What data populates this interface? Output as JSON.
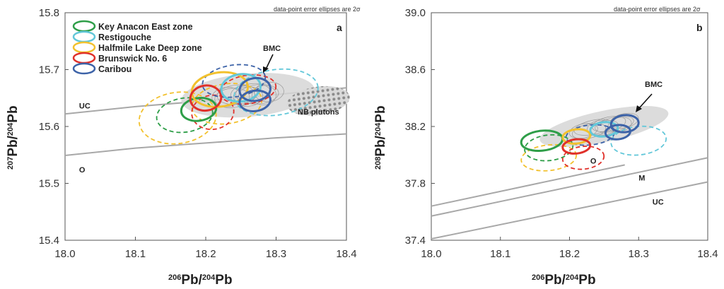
{
  "colors": {
    "Key Anacon East zone": "#2e9e48",
    "Restigouche": "#62c7d9",
    "Halfmile Lake Deep zone": "#f2c12e",
    "Brunswick No. 6": "#e0302a",
    "Caribou": "#3d63a8",
    "BMC": "#b8b8b8",
    "curve": "#a8a8a8"
  },
  "chart_data": [
    {
      "panel": "a",
      "type": "scatter",
      "note": "data-point error ellipses are 2σ",
      "xlabel": {
        "base": "206",
        "sup_a": "206",
        "text": "Pb/",
        "sup_b": "204",
        "end": "Pb"
      },
      "ylabel": {
        "sup_a": "207",
        "text": "Pb/",
        "sup_b": "204",
        "end": "Pb"
      },
      "xlim": [
        18.0,
        18.4
      ],
      "ylim": [
        15.4,
        15.8
      ],
      "xticks": [
        "18.0",
        "18.1",
        "18.2",
        "18.3",
        "18.4"
      ],
      "yticks": [
        "15.4",
        "15.5",
        "15.6",
        "15.7",
        "15.8"
      ],
      "legend": [
        "Key Anacon East zone",
        "Restigouche",
        "Halfmile Lake Deep zone",
        "Brunswick No. 6",
        "Caribou"
      ],
      "curves": [
        {
          "name": "UC",
          "label": "UC",
          "points": [
            [
              18.0,
              15.622
            ],
            [
              18.1,
              15.635
            ],
            [
              18.2,
              15.645
            ],
            [
              18.3,
              15.656
            ],
            [
              18.4,
              15.668
            ]
          ]
        },
        {
          "name": "O",
          "label": "O",
          "points": [
            [
              18.0,
              15.549
            ],
            [
              18.1,
              15.562
            ],
            [
              18.2,
              15.571
            ],
            [
              18.3,
              15.58
            ],
            [
              18.4,
              15.587
            ]
          ]
        }
      ],
      "annotations": [
        "BMC",
        "NB plutons"
      ],
      "bmc_field": {
        "center": [
          18.26,
          15.655
        ],
        "radii": [
          0.095,
          0.038
        ]
      },
      "plutons": {
        "center": [
          18.36,
          15.645
        ],
        "radii": [
          0.045,
          0.025
        ]
      },
      "ellipses": [
        {
          "series": "Key Anacon East zone",
          "x": 18.19,
          "y": 15.63,
          "rx": 0.025,
          "ry": 0.02,
          "dashed": false
        },
        {
          "series": "Key Anacon East zone",
          "x": 18.17,
          "y": 15.62,
          "rx": 0.04,
          "ry": 0.03,
          "dashed": true
        },
        {
          "series": "Halfmile Lake Deep zone",
          "x": 18.16,
          "y": 15.615,
          "rx": 0.055,
          "ry": 0.045,
          "dashed": true
        },
        {
          "series": "Halfmile Lake Deep zone",
          "x": 18.22,
          "y": 15.665,
          "rx": 0.04,
          "ry": 0.03,
          "dashed": false
        },
        {
          "series": "Halfmile Lake Deep zone",
          "x": 18.23,
          "y": 15.64,
          "rx": 0.05,
          "ry": 0.035,
          "dashed": true
        },
        {
          "series": "Brunswick No. 6",
          "x": 18.2,
          "y": 15.65,
          "rx": 0.022,
          "ry": 0.022,
          "dashed": false
        },
        {
          "series": "Brunswick No. 6",
          "x": 18.21,
          "y": 15.625,
          "rx": 0.03,
          "ry": 0.03,
          "dashed": true
        },
        {
          "series": "Brunswick No. 6",
          "x": 18.26,
          "y": 15.665,
          "rx": 0.04,
          "ry": 0.025,
          "dashed": true
        },
        {
          "series": "Restigouche",
          "x": 18.25,
          "y": 15.668,
          "rx": 0.028,
          "ry": 0.024,
          "dashed": false
        },
        {
          "series": "Restigouche",
          "x": 18.3,
          "y": 15.66,
          "rx": 0.06,
          "ry": 0.04,
          "dashed": true
        },
        {
          "series": "Caribou",
          "x": 18.27,
          "y": 15.665,
          "rx": 0.022,
          "ry": 0.02,
          "dashed": false
        },
        {
          "series": "Caribou",
          "x": 18.27,
          "y": 15.645,
          "rx": 0.022,
          "ry": 0.018,
          "dashed": false
        },
        {
          "series": "Caribou",
          "x": 18.24,
          "y": 15.68,
          "rx": 0.045,
          "ry": 0.028,
          "dashed": true
        }
      ]
    },
    {
      "panel": "b",
      "type": "scatter",
      "note": "data-point error ellipses are 2σ",
      "xlabel": {
        "sup_a": "206",
        "text": "Pb/",
        "sup_b": "204",
        "end": "Pb"
      },
      "ylabel": {
        "sup_a": "208",
        "text": "Pb/",
        "sup_b": "204",
        "end": "Pb"
      },
      "xlim": [
        18.0,
        18.4
      ],
      "ylim": [
        37.4,
        39.0
      ],
      "xticks": [
        "18.0",
        "18.1",
        "18.2",
        "18.3",
        "18.4"
      ],
      "yticks": [
        "37.4",
        "37.8",
        "38.2",
        "38.6",
        "39.0"
      ],
      "curves": [
        {
          "name": "O",
          "label": "O",
          "points": [
            [
              18.0,
              37.64
            ],
            [
              18.28,
              37.93
            ]
          ]
        },
        {
          "name": "M",
          "label": "M",
          "points": [
            [
              18.0,
              37.57
            ],
            [
              18.4,
              37.98
            ]
          ]
        },
        {
          "name": "UC",
          "label": "UC",
          "points": [
            [
              18.0,
              37.41
            ],
            [
              18.4,
              37.81
            ]
          ]
        }
      ],
      "annotations": [
        "BMC"
      ],
      "bmc_field": {
        "center": [
          18.25,
          38.2
        ],
        "radii": [
          0.095,
          0.11
        ]
      },
      "ellipses": [
        {
          "series": "Key Anacon East zone",
          "x": 18.16,
          "y": 38.1,
          "rx": 0.03,
          "ry": 0.07,
          "dashed": false
        },
        {
          "series": "Key Anacon East zone",
          "x": 18.17,
          "y": 38.05,
          "rx": 0.035,
          "ry": 0.09,
          "dashed": true
        },
        {
          "series": "Halfmile Lake Deep zone",
          "x": 18.17,
          "y": 37.98,
          "rx": 0.04,
          "ry": 0.09,
          "dashed": true
        },
        {
          "series": "Halfmile Lake Deep zone",
          "x": 18.21,
          "y": 38.13,
          "rx": 0.02,
          "ry": 0.05,
          "dashed": false
        },
        {
          "series": "Brunswick No. 6",
          "x": 18.21,
          "y": 38.06,
          "rx": 0.02,
          "ry": 0.05,
          "dashed": false
        },
        {
          "series": "Brunswick No. 6",
          "x": 18.22,
          "y": 37.98,
          "rx": 0.03,
          "ry": 0.08,
          "dashed": true
        },
        {
          "series": "Restigouche",
          "x": 18.25,
          "y": 38.18,
          "rx": 0.02,
          "ry": 0.05,
          "dashed": false
        },
        {
          "series": "Restigouche",
          "x": 18.3,
          "y": 38.1,
          "rx": 0.04,
          "ry": 0.1,
          "dashed": true
        },
        {
          "series": "Caribou",
          "x": 18.28,
          "y": 38.22,
          "rx": 0.02,
          "ry": 0.06,
          "dashed": false
        },
        {
          "series": "Caribou",
          "x": 18.27,
          "y": 38.16,
          "rx": 0.018,
          "ry": 0.05,
          "dashed": false
        },
        {
          "series": "Caribou",
          "x": 18.23,
          "y": 38.14,
          "rx": 0.035,
          "ry": 0.07,
          "dashed": true
        }
      ]
    }
  ]
}
